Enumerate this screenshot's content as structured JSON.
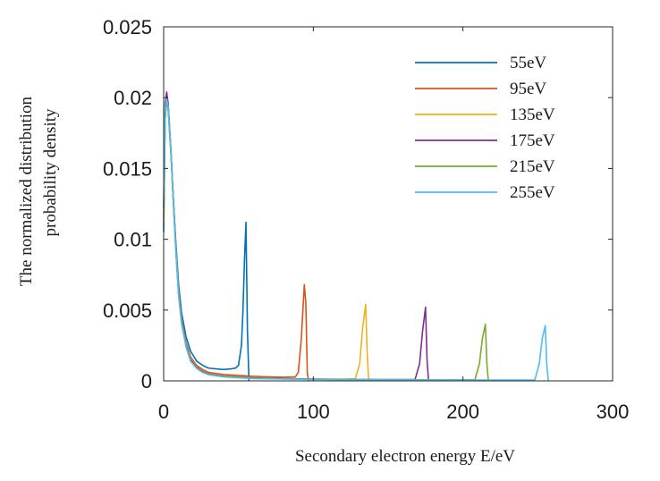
{
  "chart_data": {
    "type": "line",
    "title": "",
    "xlabel": "Secondary electron energy E/eV",
    "ylabel_lines": [
      "The normalized distribution",
      "probability density"
    ],
    "xlim": [
      0,
      300
    ],
    "ylim": [
      0,
      0.025
    ],
    "x_ticks": [
      0,
      100,
      200,
      300
    ],
    "x_tick_labels": [
      "0",
      "100",
      "200",
      "300"
    ],
    "y_ticks": [
      0,
      0.005,
      0.01,
      0.015,
      0.02,
      0.025
    ],
    "y_tick_labels": [
      "0",
      "0.005",
      "0.01",
      "0.015",
      "0.02",
      "0.025"
    ],
    "grid": false,
    "legend_position": "top-right",
    "series": [
      {
        "name": "55eV",
        "color": "#0072BD",
        "points": [
          [
            0,
            0.0105
          ],
          [
            1,
            0.0185
          ],
          [
            2,
            0.0198
          ],
          [
            3,
            0.0192
          ],
          [
            4,
            0.0175
          ],
          [
            5,
            0.0158
          ],
          [
            6,
            0.0138
          ],
          [
            8,
            0.01
          ],
          [
            10,
            0.0068
          ],
          [
            12,
            0.0048
          ],
          [
            15,
            0.0031
          ],
          [
            18,
            0.0021
          ],
          [
            22,
            0.0014
          ],
          [
            26,
            0.0011
          ],
          [
            30,
            0.0009
          ],
          [
            35,
            0.00085
          ],
          [
            40,
            0.0008
          ],
          [
            45,
            0.00085
          ],
          [
            48,
            0.0009
          ],
          [
            50,
            0.0011
          ],
          [
            52,
            0.0025
          ],
          [
            53,
            0.005
          ],
          [
            54,
            0.0085
          ],
          [
            55,
            0.0112
          ],
          [
            56,
            0.0035
          ],
          [
            57,
            0
          ]
        ]
      },
      {
        "name": "95eV",
        "color": "#D95319",
        "points": [
          [
            0,
            0.0115
          ],
          [
            1,
            0.019
          ],
          [
            2,
            0.0202
          ],
          [
            3,
            0.0195
          ],
          [
            4,
            0.0178
          ],
          [
            5,
            0.016
          ],
          [
            6,
            0.0138
          ],
          [
            8,
            0.0098
          ],
          [
            10,
            0.0064
          ],
          [
            12,
            0.0044
          ],
          [
            15,
            0.0027
          ],
          [
            18,
            0.0017
          ],
          [
            22,
            0.0011
          ],
          [
            26,
            0.0008
          ],
          [
            30,
            0.0006
          ],
          [
            40,
            0.00045
          ],
          [
            50,
            0.00038
          ],
          [
            60,
            0.00032
          ],
          [
            70,
            0.00028
          ],
          [
            80,
            0.00026
          ],
          [
            88,
            0.00028
          ],
          [
            90,
            0.0006
          ],
          [
            92,
            0.003
          ],
          [
            94,
            0.0068
          ],
          [
            95,
            0.0055
          ],
          [
            96,
            0.0005
          ],
          [
            97,
            0
          ]
        ]
      },
      {
        "name": "135eV",
        "color": "#EDB120",
        "points": [
          [
            0,
            0.0118
          ],
          [
            1,
            0.0188
          ],
          [
            2,
            0.02
          ],
          [
            3,
            0.0194
          ],
          [
            4,
            0.0176
          ],
          [
            5,
            0.0158
          ],
          [
            6,
            0.0136
          ],
          [
            8,
            0.0095
          ],
          [
            10,
            0.0062
          ],
          [
            12,
            0.0042
          ],
          [
            15,
            0.0026
          ],
          [
            18,
            0.0016
          ],
          [
            22,
            0.001
          ],
          [
            26,
            0.0007
          ],
          [
            30,
            0.0005
          ],
          [
            40,
            0.00035
          ],
          [
            60,
            0.00022
          ],
          [
            80,
            0.00016
          ],
          [
            100,
            0.00013
          ],
          [
            120,
            0.00012
          ],
          [
            128,
            0.00015
          ],
          [
            131,
            0.0012
          ],
          [
            133,
            0.0038
          ],
          [
            135,
            0.0054
          ],
          [
            136,
            0.002
          ],
          [
            137,
            0
          ]
        ]
      },
      {
        "name": "175eV",
        "color": "#7E2F8E",
        "points": [
          [
            0,
            0.0122
          ],
          [
            1,
            0.0195
          ],
          [
            2,
            0.0204
          ],
          [
            3,
            0.0196
          ],
          [
            4,
            0.0178
          ],
          [
            5,
            0.016
          ],
          [
            6,
            0.0138
          ],
          [
            8,
            0.0096
          ],
          [
            10,
            0.0062
          ],
          [
            12,
            0.0042
          ],
          [
            15,
            0.0025
          ],
          [
            18,
            0.0015
          ],
          [
            22,
            0.00095
          ],
          [
            26,
            0.00065
          ],
          [
            30,
            0.00048
          ],
          [
            40,
            0.00032
          ],
          [
            60,
            0.0002
          ],
          [
            90,
            0.00014
          ],
          [
            120,
            0.0001
          ],
          [
            150,
            9e-05
          ],
          [
            168,
            0.0001
          ],
          [
            171,
            0.0012
          ],
          [
            173,
            0.0035
          ],
          [
            175,
            0.0052
          ],
          [
            176,
            0.0015
          ],
          [
            177,
            0
          ]
        ]
      },
      {
        "name": "215eV",
        "color": "#77AC30",
        "points": [
          [
            0,
            0.0108
          ],
          [
            1,
            0.0185
          ],
          [
            2,
            0.0198
          ],
          [
            3,
            0.0193
          ],
          [
            4,
            0.0176
          ],
          [
            5,
            0.0158
          ],
          [
            6,
            0.0136
          ],
          [
            8,
            0.0094
          ],
          [
            10,
            0.006
          ],
          [
            12,
            0.004
          ],
          [
            15,
            0.0024
          ],
          [
            18,
            0.0014
          ],
          [
            22,
            0.0009
          ],
          [
            26,
            0.0006
          ],
          [
            30,
            0.00045
          ],
          [
            40,
            0.0003
          ],
          [
            60,
            0.00018
          ],
          [
            100,
            0.00011
          ],
          [
            150,
            8e-05
          ],
          [
            190,
            7e-05
          ],
          [
            208,
            8e-05
          ],
          [
            211,
            0.0012
          ],
          [
            213,
            0.003
          ],
          [
            215,
            0.004
          ],
          [
            216,
            0.0012
          ],
          [
            217,
            0
          ]
        ]
      },
      {
        "name": "255eV",
        "color": "#4DBEEE",
        "points": [
          [
            0,
            0.0125
          ],
          [
            1,
            0.0192
          ],
          [
            2,
            0.0199
          ],
          [
            3,
            0.0194
          ],
          [
            4,
            0.0177
          ],
          [
            5,
            0.0159
          ],
          [
            6,
            0.0137
          ],
          [
            8,
            0.0095
          ],
          [
            10,
            0.0061
          ],
          [
            12,
            0.0041
          ],
          [
            15,
            0.0024
          ],
          [
            18,
            0.0014
          ],
          [
            22,
            0.00088
          ],
          [
            26,
            0.0006
          ],
          [
            30,
            0.00044
          ],
          [
            40,
            0.00028
          ],
          [
            60,
            0.00016
          ],
          [
            100,
            0.0001
          ],
          [
            150,
            7e-05
          ],
          [
            200,
            6e-05
          ],
          [
            248,
            6e-05
          ],
          [
            251,
            0.0012
          ],
          [
            253,
            0.003
          ],
          [
            255,
            0.0039
          ],
          [
            256,
            0.0012
          ],
          [
            257,
            0
          ]
        ]
      }
    ]
  }
}
